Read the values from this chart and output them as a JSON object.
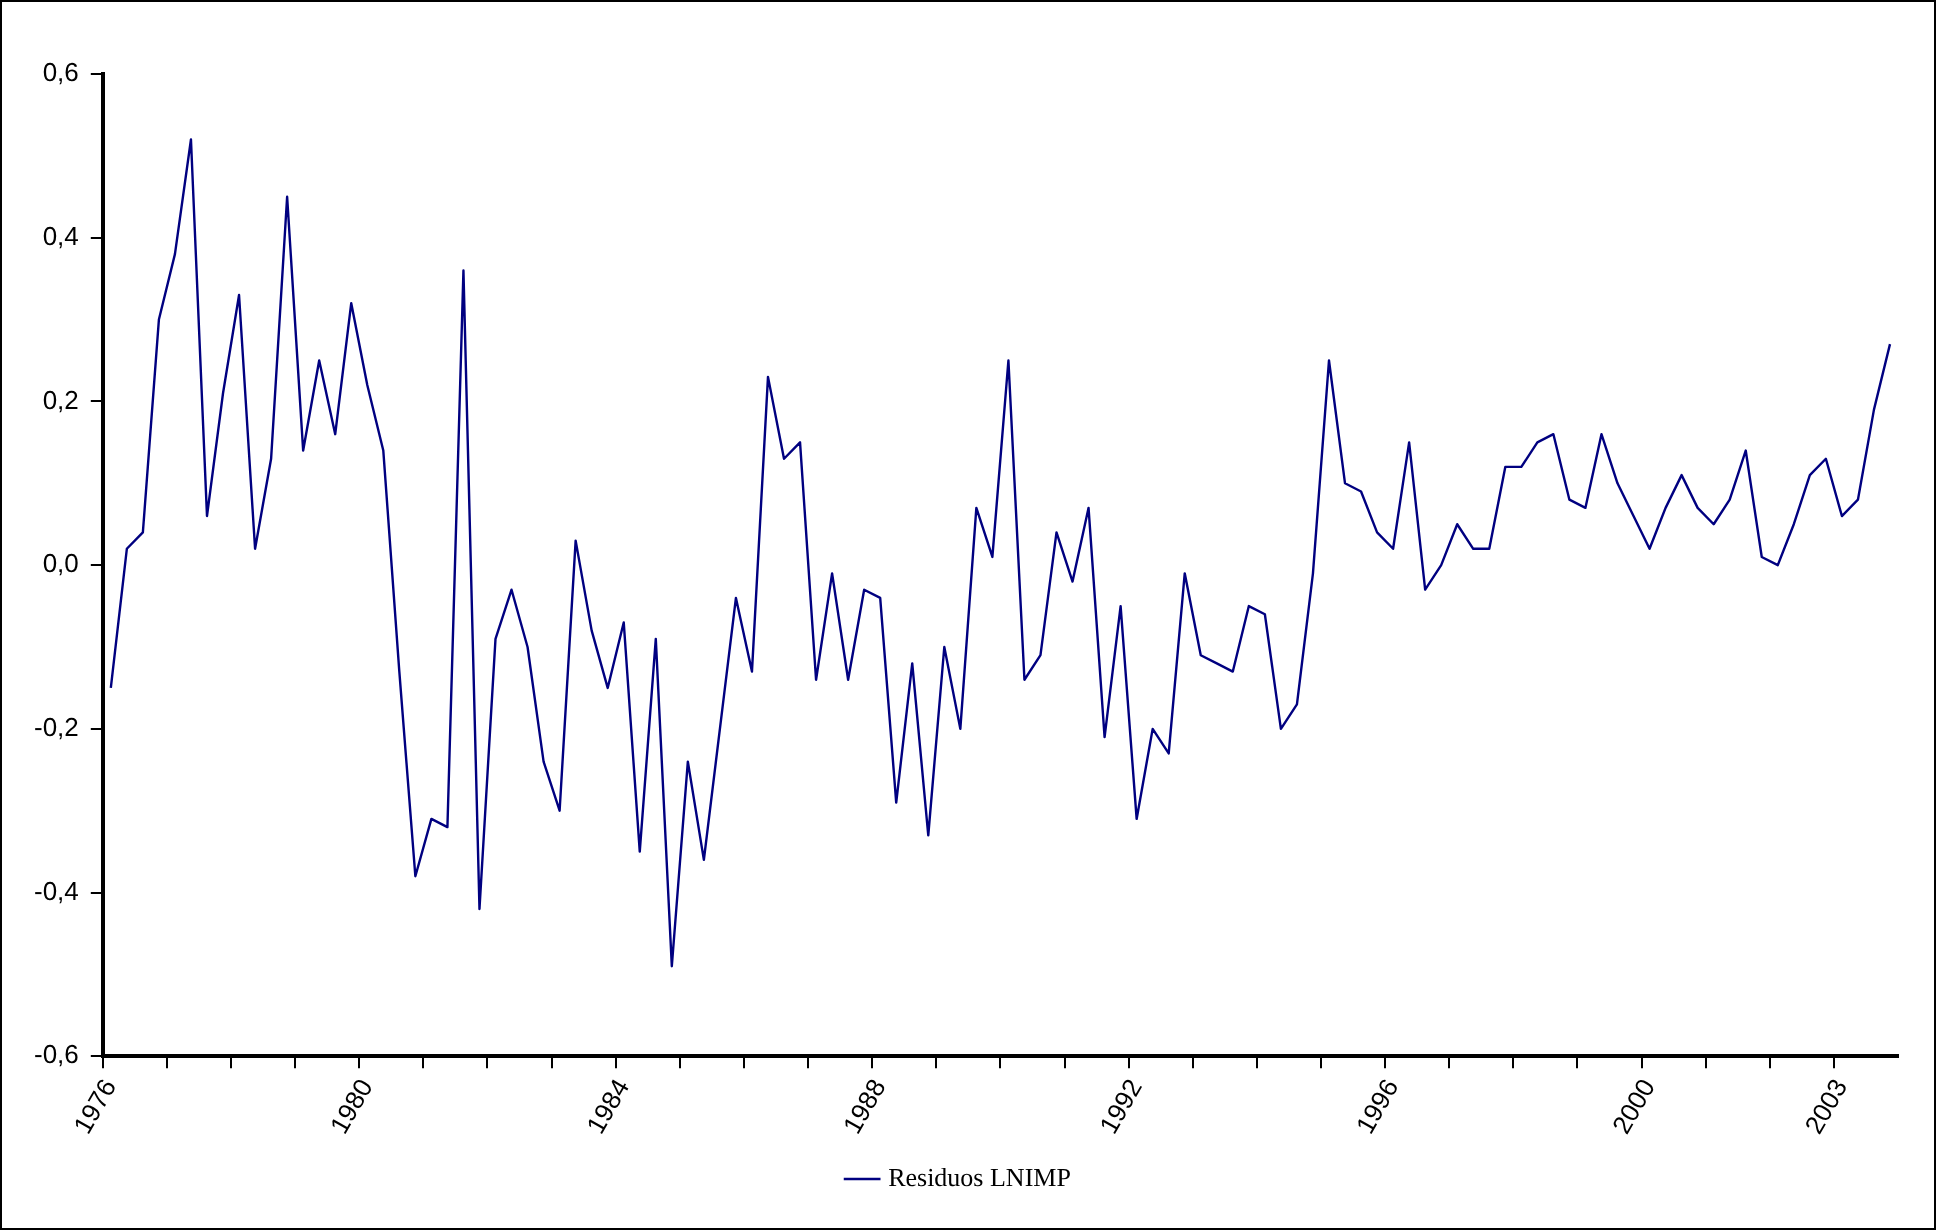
{
  "chart_data": {
    "type": "line",
    "categories": [
      "1976",
      null,
      null,
      null,
      null,
      null,
      null,
      null,
      null,
      null,
      null,
      null,
      null,
      null,
      null,
      null,
      "1980",
      null,
      null,
      null,
      null,
      null,
      null,
      null,
      null,
      null,
      null,
      null,
      null,
      null,
      null,
      null,
      "1984",
      null,
      null,
      null,
      null,
      null,
      null,
      null,
      null,
      null,
      null,
      null,
      null,
      null,
      null,
      null,
      "1988",
      null,
      null,
      null,
      null,
      null,
      null,
      null,
      null,
      null,
      null,
      null,
      null,
      null,
      null,
      null,
      "1992",
      null,
      null,
      null,
      null,
      null,
      null,
      null,
      null,
      null,
      null,
      null,
      null,
      null,
      null,
      null,
      "1996",
      null,
      null,
      null,
      null,
      null,
      null,
      null,
      null,
      null,
      null,
      null,
      null,
      null,
      null,
      null,
      "2000",
      null,
      null,
      null,
      null,
      null,
      null,
      null,
      null,
      null,
      null,
      null,
      "2003",
      null,
      null,
      null
    ],
    "series": [
      {
        "name": "Residuos LNIMP",
        "color": "#000080",
        "values": [
          -0.15,
          0.02,
          0.04,
          0.3,
          0.38,
          0.52,
          0.06,
          0.21,
          0.33,
          0.02,
          0.13,
          0.45,
          0.14,
          0.25,
          0.16,
          0.32,
          0.22,
          0.14,
          -0.13,
          -0.38,
          -0.31,
          -0.32,
          0.36,
          -0.42,
          -0.09,
          -0.03,
          -0.1,
          -0.24,
          -0.3,
          0.03,
          -0.08,
          -0.15,
          -0.07,
          -0.35,
          -0.09,
          -0.49,
          -0.24,
          -0.36,
          -0.2,
          -0.04,
          -0.13,
          0.23,
          0.13,
          0.15,
          -0.14,
          -0.01,
          -0.14,
          -0.03,
          -0.04,
          -0.29,
          -0.12,
          -0.33,
          -0.1,
          -0.2,
          0.07,
          0.01,
          0.25,
          -0.14,
          -0.11,
          0.04,
          -0.02,
          0.07,
          -0.21,
          -0.05,
          -0.31,
          -0.2,
          -0.23,
          -0.01,
          -0.11,
          -0.12,
          -0.13,
          -0.05,
          -0.06,
          -0.2,
          -0.17,
          -0.01,
          0.25,
          0.1,
          0.09,
          0.04,
          0.02,
          0.15,
          -0.03,
          0.0,
          0.05,
          0.02,
          0.02,
          0.12,
          0.12,
          0.15,
          0.16,
          0.08,
          0.07,
          0.16,
          0.1,
          0.06,
          0.02,
          0.07,
          0.11,
          0.07,
          0.05,
          0.08,
          0.14,
          0.01,
          0.0,
          0.05,
          0.11,
          0.13,
          0.06,
          0.08,
          0.19,
          0.27
        ]
      }
    ],
    "ylim": [
      -0.6,
      0.6
    ],
    "yticks": [
      {
        "value": -0.6,
        "label": "-0,6"
      },
      {
        "value": -0.4,
        "label": "-0,4"
      },
      {
        "value": -0.2,
        "label": "-0,2"
      },
      {
        "value": 0,
        "label": "0,0"
      },
      {
        "value": 0.2,
        "label": "0,2"
      },
      {
        "value": 0.4,
        "label": "0,4"
      },
      {
        "value": 0.6,
        "label": "0,6"
      }
    ],
    "grid": false,
    "legend": "bottom",
    "marker": "none",
    "line_style": "solid"
  }
}
